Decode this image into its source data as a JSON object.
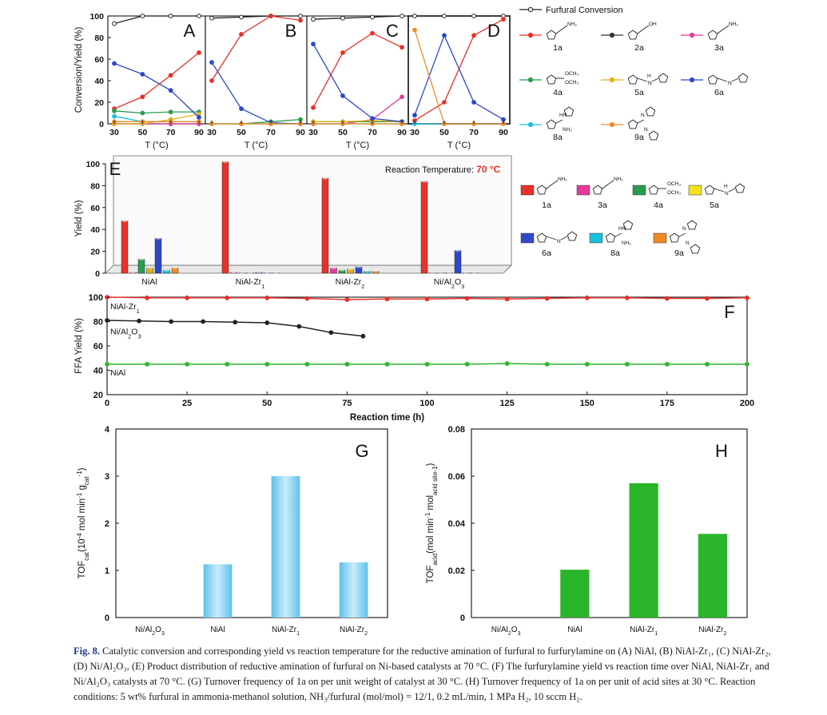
{
  "chart_data": [
    {
      "id": "A",
      "type": "line",
      "panel_label": "A",
      "x": [
        30,
        50,
        70,
        90
      ],
      "xlabel": "T (°C)",
      "ylabel": "Conversion/Yield (%)",
      "xlim": [
        30,
        90
      ],
      "ylim": [
        0,
        100
      ],
      "yticks": [
        0,
        20,
        40,
        60,
        80,
        100
      ],
      "series": [
        {
          "name": "Furfural Conversion",
          "color": "#222222",
          "values": [
            93,
            100,
            100,
            100
          ]
        },
        {
          "name": "1a",
          "color": "#e8312a",
          "values": [
            14,
            25,
            45,
            66
          ]
        },
        {
          "name": "2a",
          "color": "#333333",
          "values": [
            0,
            0,
            0,
            0
          ]
        },
        {
          "name": "3a",
          "color": "#e6399b",
          "values": [
            0,
            0,
            0,
            0
          ]
        },
        {
          "name": "4a",
          "color": "#2a9b4e",
          "values": [
            12,
            10,
            11,
            11
          ]
        },
        {
          "name": "5a",
          "color": "#e0b21a",
          "values": [
            0,
            0,
            4,
            9
          ]
        },
        {
          "name": "6a",
          "color": "#2e48c8",
          "values": [
            56,
            46,
            31,
            6
          ]
        },
        {
          "name": "8a",
          "color": "#19c2d8",
          "values": [
            7,
            2,
            2,
            2
          ]
        },
        {
          "name": "9a",
          "color": "#f08a26",
          "values": [
            2,
            2,
            2,
            2
          ]
        }
      ]
    },
    {
      "id": "B",
      "type": "line",
      "panel_label": "B",
      "x": [
        30,
        50,
        70,
        90
      ],
      "xlabel": "T (°C)",
      "xlim": [
        30,
        90
      ],
      "ylim": [
        0,
        100
      ],
      "series": [
        {
          "name": "Furfural Conversion",
          "color": "#222222",
          "values": [
            98,
            99,
            100,
            100
          ]
        },
        {
          "name": "1a",
          "color": "#e8312a",
          "values": [
            40,
            83,
            100,
            96
          ]
        },
        {
          "name": "4a",
          "color": "#2a9b4e",
          "values": [
            0,
            0,
            2,
            4
          ]
        },
        {
          "name": "5a",
          "color": "#e0b21a",
          "values": [
            0,
            0,
            0,
            0
          ]
        },
        {
          "name": "6a",
          "color": "#2e48c8",
          "values": [
            57,
            14,
            1,
            0
          ]
        },
        {
          "name": "8a",
          "color": "#19c2d8",
          "values": [
            0,
            0,
            0,
            0
          ]
        },
        {
          "name": "9a",
          "color": "#f08a26",
          "values": [
            0,
            0,
            0,
            0
          ]
        }
      ]
    },
    {
      "id": "C",
      "type": "line",
      "panel_label": "C",
      "x": [
        30,
        50,
        70,
        90
      ],
      "xlabel": "T (°C)",
      "xlim": [
        30,
        90
      ],
      "ylim": [
        0,
        100
      ],
      "series": [
        {
          "name": "Furfural Conversion",
          "color": "#222222",
          "values": [
            97,
            98,
            99,
            100
          ]
        },
        {
          "name": "1a",
          "color": "#e8312a",
          "values": [
            15,
            66,
            84,
            71
          ]
        },
        {
          "name": "3a",
          "color": "#e6399b",
          "values": [
            0,
            0,
            4,
            25
          ]
        },
        {
          "name": "4a",
          "color": "#2a9b4e",
          "values": [
            2,
            2,
            2,
            2
          ]
        },
        {
          "name": "5a",
          "color": "#e0b21a",
          "values": [
            2,
            2,
            3,
            2
          ]
        },
        {
          "name": "6a",
          "color": "#2e48c8",
          "values": [
            74,
            26,
            5,
            2
          ]
        },
        {
          "name": "8a",
          "color": "#19c2d8",
          "values": [
            0,
            0,
            0,
            0
          ]
        },
        {
          "name": "9a",
          "color": "#f08a26",
          "values": [
            0,
            0,
            0,
            0
          ]
        }
      ]
    },
    {
      "id": "D",
      "type": "line",
      "panel_label": "D",
      "x": [
        30,
        50,
        70,
        90
      ],
      "xlabel": "T (°C)",
      "xlim": [
        30,
        90
      ],
      "ylim": [
        0,
        100
      ],
      "series": [
        {
          "name": "Furfural Conversion",
          "color": "#222222",
          "values": [
            100,
            100,
            100,
            100
          ]
        },
        {
          "name": "1a",
          "color": "#e8312a",
          "values": [
            3,
            20,
            82,
            97
          ]
        },
        {
          "name": "6a",
          "color": "#2e48c8",
          "values": [
            8,
            82,
            20,
            4
          ]
        },
        {
          "name": "8a",
          "color": "#19c2d8",
          "values": [
            0,
            0,
            0,
            0
          ]
        },
        {
          "name": "9a",
          "color": "#f08a26",
          "values": [
            87,
            0,
            0,
            0
          ]
        }
      ]
    },
    {
      "id": "E",
      "type": "bar",
      "panel_label": "E",
      "annotation": "Reaction Temperature:",
      "annotation_value": "70 °C",
      "ylabel": "Yield (%)",
      "ylim": [
        0,
        100
      ],
      "yticks": [
        0,
        20,
        40,
        60,
        80,
        100
      ],
      "categories": [
        "NiAl",
        "NiAl-Zr1",
        "NiAl-Zr2",
        "Ni/Al2O3"
      ],
      "category_labels": [
        {
          "base": "NiAl",
          "sub": ""
        },
        {
          "base": "NiAl-Zr",
          "sub": "1"
        },
        {
          "base": "NiAl-Zr",
          "sub": "2"
        },
        {
          "base": "Ni/Al",
          "sub": "2",
          "tail": "O",
          "sub2": "3"
        }
      ],
      "series": [
        {
          "name": "1a",
          "color": "#e8312a",
          "values": [
            48,
            102,
            87,
            84
          ]
        },
        {
          "name": "3a",
          "color": "#e6399b",
          "values": [
            1,
            1,
            5,
            0
          ]
        },
        {
          "name": "4a",
          "color": "#2a9b4e",
          "values": [
            13,
            0,
            3,
            0
          ]
        },
        {
          "name": "5a",
          "color": "#e0b21a",
          "values": [
            5,
            0,
            4,
            0
          ]
        },
        {
          "name": "6a",
          "color": "#2e48c8",
          "values": [
            32,
            1,
            6,
            21
          ]
        },
        {
          "name": "8a",
          "color": "#19c2d8",
          "values": [
            3,
            0,
            2,
            0
          ]
        },
        {
          "name": "9a",
          "color": "#f08a26",
          "values": [
            5,
            0,
            2,
            0
          ]
        }
      ]
    },
    {
      "id": "F",
      "type": "line",
      "panel_label": "F",
      "xlabel": "Reaction time (h)",
      "ylabel": "FFA Yield (%)",
      "xlim": [
        0,
        200
      ],
      "ylim": [
        20,
        100
      ],
      "xticks": [
        0,
        25,
        50,
        75,
        100,
        125,
        150,
        175,
        200
      ],
      "yticks": [
        20,
        40,
        60,
        80,
        100
      ],
      "series": [
        {
          "name": "NiAl-Zr1",
          "label_base": "NiAl-Zr",
          "label_sub": "1",
          "color": "#e8312a",
          "x": [
            0,
            12.5,
            25,
            37.5,
            50,
            62.5,
            75,
            87.5,
            100,
            112.5,
            125,
            137.5,
            150,
            162.5,
            175,
            187.5,
            200
          ],
          "values": [
            100,
            99.5,
            99.5,
            99.5,
            99.5,
            99,
            98,
            98.5,
            98.5,
            99,
            98.5,
            99,
            99.5,
            99.5,
            99,
            99,
            99.5
          ]
        },
        {
          "name": "Ni/Al2O3",
          "label_base": "Ni/Al",
          "label_sub": "2",
          "label_tail": "O",
          "label_sub2": "3",
          "color": "#222222",
          "x": [
            0,
            10,
            20,
            30,
            40,
            50,
            60,
            70,
            80
          ],
          "values": [
            81,
            80.5,
            80,
            80,
            79.5,
            79,
            76,
            71,
            68
          ]
        },
        {
          "name": "NiAl",
          "label_base": "NiAl",
          "label_sub": "",
          "color": "#2bb52b",
          "x": [
            0,
            12.5,
            25,
            37.5,
            50,
            62.5,
            75,
            87.5,
            100,
            112.5,
            125,
            137.5,
            150,
            162.5,
            175,
            187.5,
            200
          ],
          "values": [
            45,
            45,
            45,
            45,
            45,
            45,
            45,
            45,
            45,
            45,
            45.5,
            45,
            45,
            45,
            45,
            45,
            45
          ]
        }
      ]
    },
    {
      "id": "G",
      "type": "bar",
      "panel_label": "G",
      "ylabel": "TOFcat(10-4 mol min-1 gcat-1)",
      "ylim": [
        0,
        4
      ],
      "yticks": [
        0,
        1,
        2,
        3,
        4
      ],
      "categories": [
        "Ni/Al2O3",
        "NiAl",
        "NiAl-Zr1",
        "NiAl-Zr2"
      ],
      "category_labels": [
        {
          "base": "Ni/Al",
          "sub": "2",
          "tail": "O",
          "sub2": "3"
        },
        {
          "base": "NiAl",
          "sub": ""
        },
        {
          "base": "NiAl-Zr",
          "sub": "1"
        },
        {
          "base": "NiAl-Zr",
          "sub": "2"
        }
      ],
      "values": [
        0,
        1.13,
        3.0,
        1.17
      ],
      "color": "#7fd0ef"
    },
    {
      "id": "H",
      "type": "bar",
      "panel_label": "H",
      "ylabel": "TOFacid(mol min-1 molacid site-1)",
      "ylim": [
        0,
        0.08
      ],
      "yticks": [
        0,
        0.02,
        0.04,
        0.06,
        0.08
      ],
      "ytick_labels": [
        "0",
        "0.02",
        "0.04",
        "0.06",
        "0.08"
      ],
      "categories": [
        "Ni/Al2O3",
        "NiAl",
        "NiAl-Zr1",
        "NiAl-Zr2"
      ],
      "category_labels": [
        {
          "base": "Ni/Al",
          "sub": "2",
          "tail": "O",
          "sub2": "3"
        },
        {
          "base": "NiAl",
          "sub": ""
        },
        {
          "base": "NiAl-Zr",
          "sub": "1"
        },
        {
          "base": "NiAl-Zr",
          "sub": "2"
        }
      ],
      "values": [
        0,
        0.0203,
        0.057,
        0.0355
      ],
      "color": "#2bb52b"
    }
  ],
  "legend_top": [
    {
      "name": "Furfural Conversion",
      "color": "#222222"
    },
    {
      "name": "1a",
      "color": "#e8312a"
    },
    {
      "name": "2a",
      "color": "#333333"
    },
    {
      "name": "3a",
      "color": "#e6399b"
    },
    {
      "name": "4a",
      "color": "#2a9b4e"
    },
    {
      "name": "5a",
      "color": "#e0b21a"
    },
    {
      "name": "6a",
      "color": "#2e48c8"
    },
    {
      "name": "8a",
      "color": "#19c2d8"
    },
    {
      "name": "9a",
      "color": "#f08a26"
    }
  ],
  "legend_mid": [
    {
      "name": "1a",
      "color": "#e8312a"
    },
    {
      "name": "3a",
      "color": "#e6399b"
    },
    {
      "name": "4a",
      "color": "#2a9b4e"
    },
    {
      "name": "5a",
      "color": "#f2e21c"
    },
    {
      "name": "6a",
      "color": "#2e48c8"
    },
    {
      "name": "8a",
      "color": "#19c2d8"
    },
    {
      "name": "9a",
      "color": "#f08a26"
    }
  ],
  "structure_labels": {
    "nh2": "NH₂",
    "oh": "OH",
    "hn": "HN",
    "h": "H",
    "n": "N",
    "och3": "OCH₃"
  },
  "caption": {
    "label": "Fig. 8.",
    "text": "Catalytic conversion and corresponding yield vs reaction temperature for the reductive amination of furfural to furfurylamine on (A) NiAl, (B) NiAl-Zr₁, (C) NiAl-Zr₂, (D) Ni/Al₂O₃, (E) Product distribution of reductive amination of furfural on Ni-based catalysts at 70 °C. (F) The furfurylamine yield vs reaction time over NiAl, NiAl-Zr₁ and Ni/Al₂O₃ catalysts at 70 °C. (G) Turnover frequency of 1a on per unit weight of catalyst at 30 °C. (H) Turnover frequency of 1a on per unit of acid sites at 30 °C. Reaction conditions: 5 wt% furfural in ammonia-methanol solution, NH₃/furfural (mol/mol) = 12/1, 0.2 mL/min, 1 MPa H₂, 10 sccm H₂."
  }
}
